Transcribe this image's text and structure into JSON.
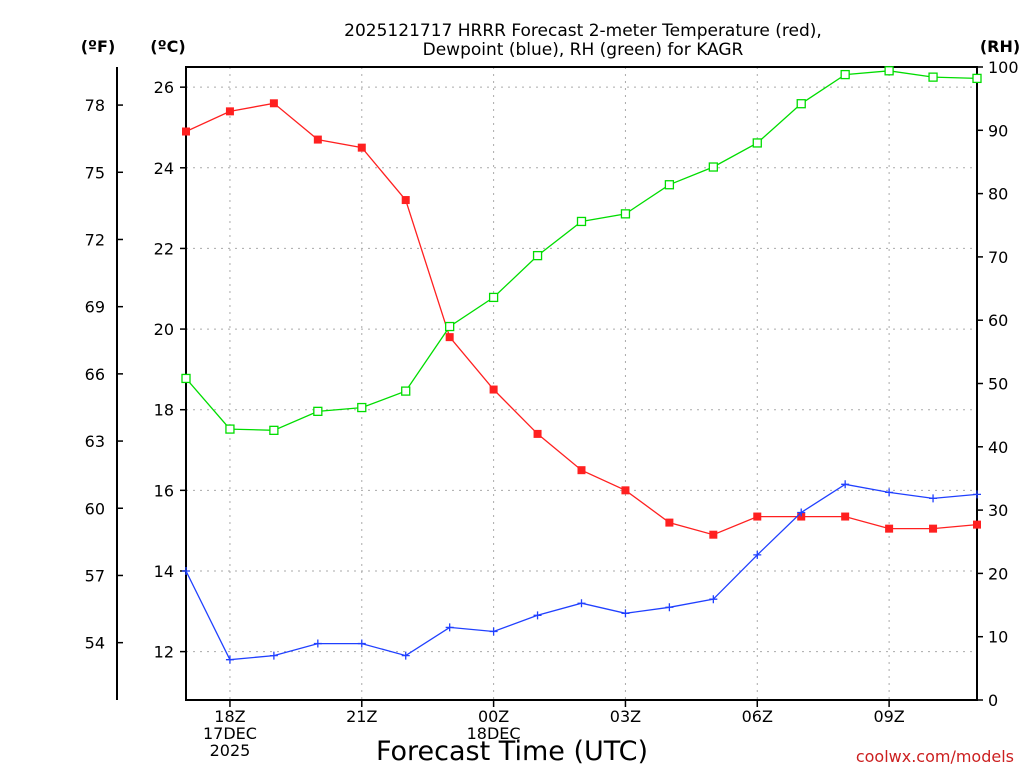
{
  "chart_data": {
    "type": "line",
    "title_line1": "2025121717 HRRR Forecast 2-meter Temperature (red),",
    "title_line2": "Dewpoint (blue), RH (green) for KAGR",
    "xlabel": "Forecast Time (UTC)",
    "watermark": "coolwx.com/models",
    "unit_labels": {
      "fahrenheit": "(ºF)",
      "celsius": "(ºC)",
      "rh": "(RH)"
    },
    "x_hours": [
      17,
      18,
      19,
      20,
      21,
      22,
      23,
      24,
      25,
      26,
      27,
      28,
      29,
      30,
      31,
      32,
      33,
      34,
      35
    ],
    "xlim": [
      17,
      35
    ],
    "x_ticks": [
      {
        "hour": 18,
        "lines": [
          "18Z",
          "17DEC",
          "2025"
        ]
      },
      {
        "hour": 21,
        "lines": [
          "21Z"
        ]
      },
      {
        "hour": 24,
        "lines": [
          "00Z",
          "18DEC"
        ]
      },
      {
        "hour": 27,
        "lines": [
          "03Z"
        ]
      },
      {
        "hour": 30,
        "lines": [
          "06Z"
        ]
      },
      {
        "hour": 33,
        "lines": [
          "09Z"
        ]
      }
    ],
    "celsius_axis": {
      "range": [
        10.8,
        26.5
      ],
      "ticks": [
        12,
        14,
        16,
        18,
        20,
        22,
        24,
        26
      ]
    },
    "fahrenheit_axis": {
      "ticks": [
        54,
        57,
        60,
        63,
        66,
        69,
        72,
        75,
        78
      ]
    },
    "rh_axis": {
      "range": [
        0,
        100
      ],
      "ticks": [
        0,
        10,
        20,
        30,
        40,
        50,
        60,
        70,
        80,
        90,
        100
      ]
    },
    "series": [
      {
        "name": "Temperature",
        "axis": "celsius",
        "color": "#ff2020",
        "marker": "filled-square",
        "values": [
          24.9,
          25.4,
          25.6,
          24.7,
          24.5,
          23.2,
          19.8,
          18.5,
          17.4,
          16.5,
          16.0,
          15.2,
          14.9,
          15.35,
          15.35,
          15.35,
          15.05,
          15.05,
          15.15
        ]
      },
      {
        "name": "Dewpoint",
        "axis": "celsius",
        "color": "#2040ff",
        "marker": "plus",
        "values": [
          14.0,
          11.8,
          11.9,
          12.2,
          12.2,
          11.9,
          12.6,
          12.5,
          12.9,
          13.2,
          12.95,
          13.1,
          13.3,
          14.4,
          15.45,
          16.15,
          15.95,
          15.8,
          15.9
        ]
      },
      {
        "name": "RH",
        "axis": "rh",
        "color": "#00dd00",
        "marker": "open-square",
        "values": [
          50.8,
          42.8,
          42.6,
          45.6,
          46.2,
          48.8,
          59.0,
          63.6,
          70.2,
          75.6,
          76.8,
          81.4,
          84.2,
          88.0,
          94.2,
          98.8,
          99.4,
          98.4,
          98.2
        ]
      }
    ]
  }
}
